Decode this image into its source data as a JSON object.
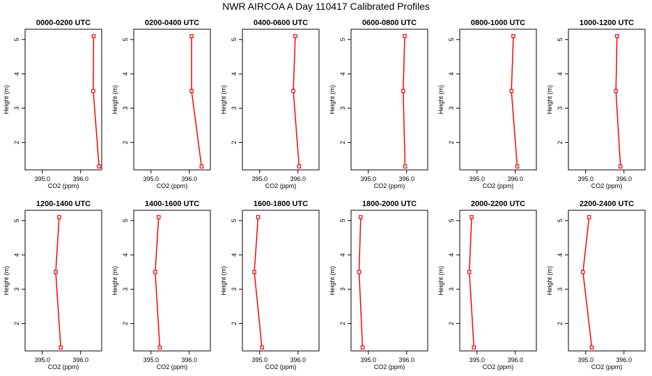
{
  "figure": {
    "title": "NWR AIRCOA A  Day 110417  Calibrated Profiles"
  },
  "colors": {
    "series": "#ff0000",
    "axis": "#000000",
    "text": "#000000"
  },
  "chart_data": [
    {
      "type": "line",
      "title": "0000-0200 UTC",
      "xlabel": "CO2 (ppm)",
      "ylabel": "Height (m)",
      "xlim": [
        394.55,
        396.55
      ],
      "ylim": [
        1.2,
        5.3
      ],
      "xticks": [
        395.0,
        396.0
      ],
      "xtick_labels": [
        "395.0",
        "396.0"
      ],
      "yticks": [
        2,
        3,
        4,
        5
      ],
      "ytick_labels": [
        "2",
        "3",
        "4",
        "5"
      ],
      "series": [
        {
          "name": "profile",
          "x": [
            396.48,
            396.33,
            396.34
          ],
          "y": [
            1.3,
            3.5,
            5.1
          ]
        }
      ]
    },
    {
      "type": "line",
      "title": "0200-0400 UTC",
      "xlabel": "CO2 (ppm)",
      "ylabel": "Height (m)",
      "xlim": [
        394.55,
        396.55
      ],
      "ylim": [
        1.2,
        5.3
      ],
      "xticks": [
        395.0,
        396.0
      ],
      "xtick_labels": [
        "395.0",
        "396.0"
      ],
      "yticks": [
        2,
        3,
        4,
        5
      ],
      "ytick_labels": [
        "2",
        "3",
        "4",
        "5"
      ],
      "series": [
        {
          "name": "profile",
          "x": [
            396.32,
            396.06,
            396.06
          ],
          "y": [
            1.3,
            3.5,
            5.1
          ]
        }
      ]
    },
    {
      "type": "line",
      "title": "0400-0600 UTC",
      "xlabel": "CO2 (ppm)",
      "ylabel": "Height (m)",
      "xlim": [
        394.55,
        396.55
      ],
      "ylim": [
        1.2,
        5.3
      ],
      "xticks": [
        395.0,
        396.0
      ],
      "xtick_labels": [
        "395.0",
        "396.0"
      ],
      "yticks": [
        2,
        3,
        4,
        5
      ],
      "ytick_labels": [
        "2",
        "3",
        "4",
        "5"
      ],
      "series": [
        {
          "name": "profile",
          "x": [
            396.03,
            395.88,
            395.93
          ],
          "y": [
            1.3,
            3.5,
            5.1
          ]
        }
      ]
    },
    {
      "type": "line",
      "title": "0600-0800 UTC",
      "xlabel": "CO2 (ppm)",
      "ylabel": "Height (m)",
      "xlim": [
        394.55,
        396.55
      ],
      "ylim": [
        1.2,
        5.3
      ],
      "xticks": [
        395.0,
        396.0
      ],
      "xtick_labels": [
        "395.0",
        "396.0"
      ],
      "yticks": [
        2,
        3,
        4,
        5
      ],
      "ytick_labels": [
        "2",
        "3",
        "4",
        "5"
      ],
      "series": [
        {
          "name": "profile",
          "x": [
            395.96,
            395.91,
            395.95
          ],
          "y": [
            1.3,
            3.5,
            5.1
          ]
        }
      ]
    },
    {
      "type": "line",
      "title": "0800-1000 UTC",
      "xlabel": "CO2 (ppm)",
      "ylabel": "Height (m)",
      "xlim": [
        394.55,
        396.55
      ],
      "ylim": [
        1.2,
        5.3
      ],
      "xticks": [
        395.0,
        396.0
      ],
      "xtick_labels": [
        "395.0",
        "396.0"
      ],
      "yticks": [
        2,
        3,
        4,
        5
      ],
      "ytick_labels": [
        "2",
        "3",
        "4",
        "5"
      ],
      "series": [
        {
          "name": "profile",
          "x": [
            396.05,
            395.9,
            395.95
          ],
          "y": [
            1.3,
            3.5,
            5.1
          ]
        }
      ]
    },
    {
      "type": "line",
      "title": "1000-1200 UTC",
      "xlabel": "CO2 (ppm)",
      "ylabel": "Height (m)",
      "xlim": [
        394.55,
        396.55
      ],
      "ylim": [
        1.2,
        5.3
      ],
      "xticks": [
        395.0,
        396.0
      ],
      "xtick_labels": [
        "395.0",
        "396.0"
      ],
      "yticks": [
        2,
        3,
        4,
        5
      ],
      "ytick_labels": [
        "2",
        "3",
        "4",
        "5"
      ],
      "series": [
        {
          "name": "profile",
          "x": [
            395.91,
            395.79,
            395.82
          ],
          "y": [
            1.3,
            3.5,
            5.1
          ]
        }
      ]
    },
    {
      "type": "line",
      "title": "1200-1400 UTC",
      "xlabel": "CO2 (ppm)",
      "ylabel": "Height (m)",
      "xlim": [
        394.55,
        396.55
      ],
      "ylim": [
        1.2,
        5.3
      ],
      "xticks": [
        395.0,
        396.0
      ],
      "xtick_labels": [
        "395.0",
        "396.0"
      ],
      "yticks": [
        2,
        3,
        4,
        5
      ],
      "ytick_labels": [
        "2",
        "3",
        "4",
        "5"
      ],
      "series": [
        {
          "name": "profile",
          "x": [
            395.48,
            395.35,
            395.44
          ],
          "y": [
            1.3,
            3.5,
            5.1
          ]
        }
      ]
    },
    {
      "type": "line",
      "title": "1400-1600 UTC",
      "xlabel": "CO2 (ppm)",
      "ylabel": "Height (m)",
      "xlim": [
        394.55,
        396.55
      ],
      "ylim": [
        1.2,
        5.3
      ],
      "xticks": [
        395.0,
        396.0
      ],
      "xtick_labels": [
        "395.0",
        "396.0"
      ],
      "yticks": [
        2,
        3,
        4,
        5
      ],
      "ytick_labels": [
        "2",
        "3",
        "4",
        "5"
      ],
      "series": [
        {
          "name": "profile",
          "x": [
            395.23,
            395.11,
            395.2
          ],
          "y": [
            1.3,
            3.5,
            5.1
          ]
        }
      ]
    },
    {
      "type": "line",
      "title": "1600-1800 UTC",
      "xlabel": "CO2 (ppm)",
      "ylabel": "Height (m)",
      "xlim": [
        394.55,
        396.55
      ],
      "ylim": [
        1.2,
        5.3
      ],
      "xticks": [
        395.0,
        396.0
      ],
      "xtick_labels": [
        "395.0",
        "396.0"
      ],
      "yticks": [
        2,
        3,
        4,
        5
      ],
      "ytick_labels": [
        "2",
        "3",
        "4",
        "5"
      ],
      "series": [
        {
          "name": "profile",
          "x": [
            395.06,
            394.86,
            394.96
          ],
          "y": [
            1.3,
            3.5,
            5.1
          ]
        }
      ]
    },
    {
      "type": "line",
      "title": "1800-2000 UTC",
      "xlabel": "CO2 (ppm)",
      "ylabel": "Height (m)",
      "xlim": [
        394.55,
        396.55
      ],
      "ylim": [
        1.2,
        5.3
      ],
      "xticks": [
        395.0,
        396.0
      ],
      "xtick_labels": [
        "395.0",
        "396.0"
      ],
      "yticks": [
        2,
        3,
        4,
        5
      ],
      "ytick_labels": [
        "2",
        "3",
        "4",
        "5"
      ],
      "series": [
        {
          "name": "profile",
          "x": [
            394.85,
            394.76,
            394.8
          ],
          "y": [
            1.3,
            3.5,
            5.1
          ]
        }
      ]
    },
    {
      "type": "line",
      "title": "2000-2200 UTC",
      "xlabel": "CO2 (ppm)",
      "ylabel": "Height (m)",
      "xlim": [
        394.55,
        396.55
      ],
      "ylim": [
        1.2,
        5.3
      ],
      "xticks": [
        395.0,
        396.0
      ],
      "xtick_labels": [
        "395.0",
        "396.0"
      ],
      "yticks": [
        2,
        3,
        4,
        5
      ],
      "ytick_labels": [
        "2",
        "3",
        "4",
        "5"
      ],
      "series": [
        {
          "name": "profile",
          "x": [
            394.92,
            394.8,
            394.86
          ],
          "y": [
            1.3,
            3.5,
            5.1
          ]
        }
      ]
    },
    {
      "type": "line",
      "title": "2200-2400 UTC",
      "xlabel": "CO2 (ppm)",
      "ylabel": "Height (m)",
      "xlim": [
        394.55,
        396.55
      ],
      "ylim": [
        1.2,
        5.3
      ],
      "xticks": [
        395.0,
        396.0
      ],
      "xtick_labels": [
        "395.0",
        "396.0"
      ],
      "yticks": [
        2,
        3,
        4,
        5
      ],
      "ytick_labels": [
        "2",
        "3",
        "4",
        "5"
      ],
      "series": [
        {
          "name": "profile",
          "x": [
            395.16,
            394.93,
            395.09
          ],
          "y": [
            1.3,
            3.5,
            5.1
          ]
        }
      ]
    }
  ]
}
